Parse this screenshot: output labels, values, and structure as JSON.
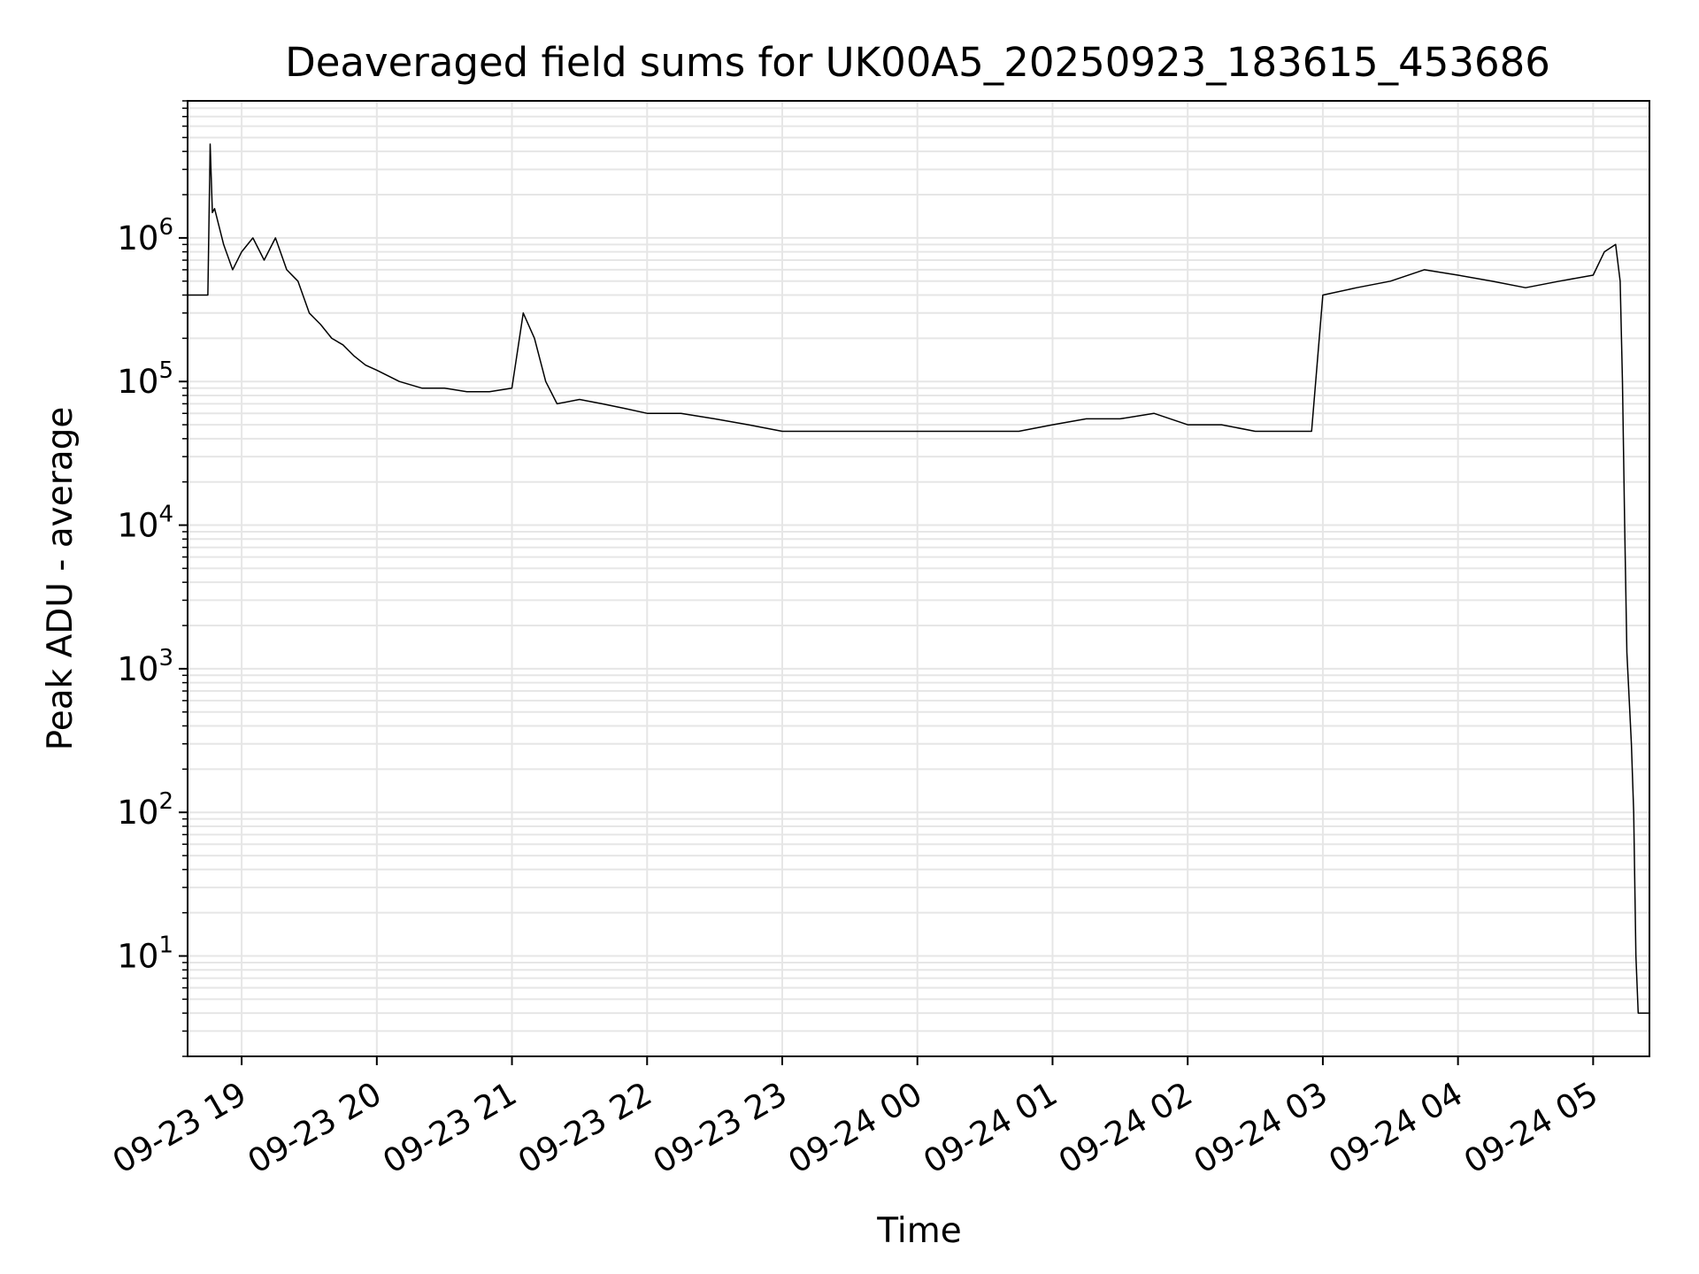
{
  "chart_data": {
    "type": "line",
    "title": "Deaveraged field sums for UK00A5_20250923_183615_453686",
    "xlabel": "Time",
    "ylabel": "Peak ADU - average",
    "y_scale": "log",
    "xlim": [
      "2025-09-23 18:36",
      "2025-09-24 05:25"
    ],
    "ylim": [
      2,
      9000000
    ],
    "x_ticks": [
      "09-23 19",
      "09-23 20",
      "09-23 21",
      "09-23 22",
      "09-23 23",
      "09-24 00",
      "09-24 01",
      "09-24 02",
      "09-24 03",
      "09-24 04",
      "09-24 05"
    ],
    "y_ticks": [
      {
        "base": "10",
        "exp": "1",
        "value": 10
      },
      {
        "base": "10",
        "exp": "2",
        "value": 100
      },
      {
        "base": "10",
        "exp": "3",
        "value": 1000
      },
      {
        "base": "10",
        "exp": "4",
        "value": 10000
      },
      {
        "base": "10",
        "exp": "5",
        "value": 100000
      },
      {
        "base": "10",
        "exp": "6",
        "value": 1000000
      }
    ],
    "grid": true,
    "line_color": "#000000",
    "grid_color": "#e6e6e6",
    "series": [
      {
        "points": [
          [
            "2025-09-23 18:36",
            400000
          ],
          [
            "2025-09-23 18:45",
            400000
          ],
          [
            "2025-09-23 18:46",
            4500000
          ],
          [
            "2025-09-23 18:47",
            1500000
          ],
          [
            "2025-09-23 18:48",
            1600000
          ],
          [
            "2025-09-23 18:52",
            900000
          ],
          [
            "2025-09-23 18:56",
            600000
          ],
          [
            "2025-09-23 19:00",
            800000
          ],
          [
            "2025-09-23 19:05",
            1000000
          ],
          [
            "2025-09-23 19:10",
            700000
          ],
          [
            "2025-09-23 19:15",
            1000000
          ],
          [
            "2025-09-23 19:20",
            600000
          ],
          [
            "2025-09-23 19:25",
            500000
          ],
          [
            "2025-09-23 19:30",
            300000
          ],
          [
            "2025-09-23 19:35",
            250000
          ],
          [
            "2025-09-23 19:40",
            200000
          ],
          [
            "2025-09-23 19:45",
            180000
          ],
          [
            "2025-09-23 19:50",
            150000
          ],
          [
            "2025-09-23 19:55",
            130000
          ],
          [
            "2025-09-23 20:00",
            120000
          ],
          [
            "2025-09-23 20:10",
            100000
          ],
          [
            "2025-09-23 20:20",
            90000
          ],
          [
            "2025-09-23 20:30",
            90000
          ],
          [
            "2025-09-23 20:40",
            85000
          ],
          [
            "2025-09-23 20:50",
            85000
          ],
          [
            "2025-09-23 21:00",
            90000
          ],
          [
            "2025-09-23 21:05",
            300000
          ],
          [
            "2025-09-23 21:10",
            200000
          ],
          [
            "2025-09-23 21:15",
            100000
          ],
          [
            "2025-09-23 21:20",
            70000
          ],
          [
            "2025-09-23 21:30",
            75000
          ],
          [
            "2025-09-23 21:40",
            70000
          ],
          [
            "2025-09-23 21:50",
            65000
          ],
          [
            "2025-09-23 22:00",
            60000
          ],
          [
            "2025-09-23 22:15",
            60000
          ],
          [
            "2025-09-23 22:30",
            55000
          ],
          [
            "2025-09-23 22:45",
            50000
          ],
          [
            "2025-09-23 23:00",
            45000
          ],
          [
            "2025-09-23 23:15",
            45000
          ],
          [
            "2025-09-23 23:30",
            45000
          ],
          [
            "2025-09-23 23:45",
            45000
          ],
          [
            "2025-09-24 00:00",
            45000
          ],
          [
            "2025-09-24 00:15",
            45000
          ],
          [
            "2025-09-24 00:30",
            45000
          ],
          [
            "2025-09-24 00:45",
            45000
          ],
          [
            "2025-09-24 01:00",
            50000
          ],
          [
            "2025-09-24 01:15",
            55000
          ],
          [
            "2025-09-24 01:30",
            55000
          ],
          [
            "2025-09-24 01:45",
            60000
          ],
          [
            "2025-09-24 02:00",
            50000
          ],
          [
            "2025-09-24 02:15",
            50000
          ],
          [
            "2025-09-24 02:30",
            45000
          ],
          [
            "2025-09-24 02:45",
            45000
          ],
          [
            "2025-09-24 02:55",
            45000
          ],
          [
            "2025-09-24 03:00",
            400000
          ],
          [
            "2025-09-24 03:15",
            450000
          ],
          [
            "2025-09-24 03:30",
            500000
          ],
          [
            "2025-09-24 03:45",
            600000
          ],
          [
            "2025-09-24 04:00",
            550000
          ],
          [
            "2025-09-24 04:15",
            500000
          ],
          [
            "2025-09-24 04:30",
            450000
          ],
          [
            "2025-09-24 04:45",
            500000
          ],
          [
            "2025-09-24 05:00",
            550000
          ],
          [
            "2025-09-24 05:05",
            800000
          ],
          [
            "2025-09-24 05:10",
            900000
          ],
          [
            "2025-09-24 05:12",
            500000
          ],
          [
            "2025-09-24 05:13",
            100000
          ],
          [
            "2025-09-24 05:14",
            10000
          ],
          [
            "2025-09-24 05:15",
            1300
          ],
          [
            "2025-09-24 05:17",
            300
          ],
          [
            "2025-09-24 05:18",
            100
          ],
          [
            "2025-09-24 05:19",
            10
          ],
          [
            "2025-09-24 05:20",
            4
          ],
          [
            "2025-09-24 05:25",
            4
          ]
        ]
      }
    ]
  }
}
